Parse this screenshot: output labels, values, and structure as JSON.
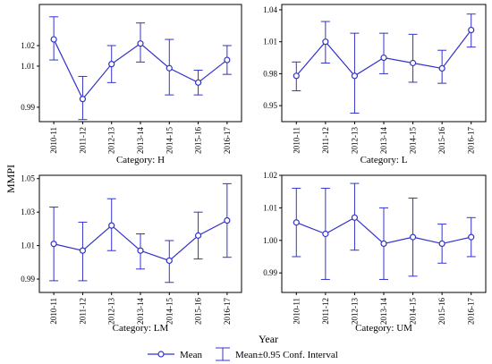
{
  "figure": {
    "ylabel": "MMPI",
    "xlabel": "Year",
    "legend": {
      "mean_label": "Mean",
      "ci_label": "Mean±0.95 Conf. Interval"
    }
  },
  "colors": {
    "series": "#3333cc",
    "frame": "#000000",
    "background": "#ffffff"
  },
  "chart_data": [
    {
      "type": "line",
      "category_label": "Category:  H",
      "categories": [
        "2010-11",
        "2011-12",
        "2012-13",
        "2013-14",
        "2014-15",
        "2015-16",
        "2016-17"
      ],
      "yticks": [
        0.99,
        1.01,
        1.02
      ],
      "ylim": [
        0.983,
        1.04
      ],
      "series": [
        {
          "name": "Mean",
          "values": [
            1.023,
            0.994,
            1.011,
            1.021,
            1.009,
            1.002,
            1.013
          ],
          "ci_low": [
            1.013,
            0.984,
            1.002,
            1.012,
            0.996,
            0.996,
            1.006
          ],
          "ci_high": [
            1.034,
            1.005,
            1.02,
            1.031,
            1.023,
            1.008,
            1.02
          ]
        }
      ]
    },
    {
      "type": "line",
      "category_label": "Category:  L",
      "categories": [
        "2010-11",
        "2011-12",
        "2012-13",
        "2013-14",
        "2014-15",
        "2015-16",
        "2016-17"
      ],
      "yticks": [
        0.95,
        0.98,
        1.01,
        1.04
      ],
      "ylim": [
        0.935,
        1.045
      ],
      "series": [
        {
          "name": "Mean",
          "values": [
            0.978,
            1.01,
            0.978,
            0.995,
            0.99,
            0.985,
            1.021
          ],
          "ci_low": [
            0.964,
            0.99,
            0.943,
            0.98,
            0.972,
            0.971,
            1.005
          ],
          "ci_high": [
            0.991,
            1.029,
            1.018,
            1.018,
            1.017,
            1.002,
            1.036
          ]
        }
      ]
    },
    {
      "type": "line",
      "category_label": "Category:  LM",
      "categories": [
        "2010-11",
        "2011-12",
        "2012-13",
        "2013-14",
        "2014-15",
        "2015-16",
        "2016-17"
      ],
      "yticks": [
        0.99,
        1.01,
        1.03,
        1.05
      ],
      "ylim": [
        0.982,
        1.052
      ],
      "series": [
        {
          "name": "Mean",
          "values": [
            1.011,
            1.007,
            1.022,
            1.007,
            1.001,
            1.016,
            1.025
          ],
          "ci_low": [
            0.989,
            0.989,
            1.007,
            0.996,
            0.988,
            1.002,
            1.003
          ],
          "ci_high": [
            1.033,
            1.024,
            1.038,
            1.017,
            1.013,
            1.03,
            1.047
          ]
        }
      ]
    },
    {
      "type": "line",
      "category_label": "Category:  UM",
      "categories": [
        "2010-11",
        "2011-12",
        "2012-13",
        "2013-14",
        "2014-15",
        "2015-16",
        "2016-17"
      ],
      "yticks": [
        0.99,
        1.0,
        1.01,
        1.02
      ],
      "ylim": [
        0.984,
        1.02
      ],
      "series": [
        {
          "name": "Mean",
          "values": [
            1.0055,
            1.002,
            1.007,
            0.999,
            1.001,
            0.999,
            1.001
          ],
          "ci_low": [
            0.995,
            0.988,
            0.997,
            0.988,
            0.989,
            0.993,
            0.995
          ],
          "ci_high": [
            1.016,
            1.016,
            1.0175,
            1.01,
            1.013,
            1.005,
            1.007
          ]
        }
      ]
    }
  ]
}
